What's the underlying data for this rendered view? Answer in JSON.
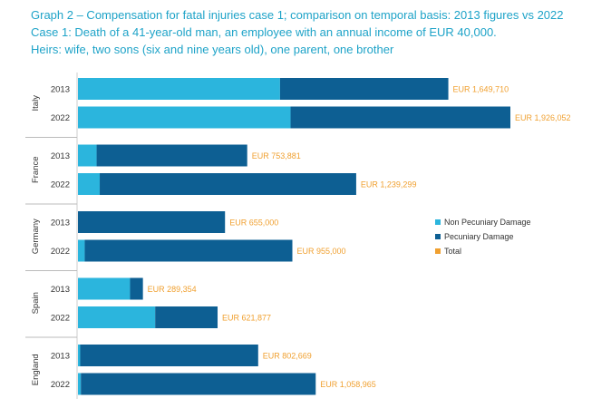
{
  "title_lines": [
    "Graph 2 – Compensation for fatal injuries case 1; comparison on temporal basis: 2013 figures vs 2022",
    "Case 1: Death of a 41-year-old man, an employee with an annual income of EUR 40,000.",
    "Heirs: wife, two sons (six and nine years old), one parent, one brother"
  ],
  "colors": {
    "non_pecuniary": "#2bb5dd",
    "pecuniary": "#0d5f93",
    "total": "#f0a030",
    "title": "#1ea3c8"
  },
  "chart_data": {
    "type": "bar",
    "orientation": "horizontal",
    "stacked": true,
    "currency": "EUR",
    "groups": [
      {
        "country": "Italy",
        "rows": [
          {
            "year": "2013",
            "non_pecuniary": 900000,
            "pecuniary": 749710,
            "total": 1649710,
            "total_label": "EUR 1,649,710"
          },
          {
            "year": "2022",
            "non_pecuniary": 947000,
            "pecuniary": 979052,
            "total": 1926052,
            "total_label": "EUR 1,926,052"
          }
        ]
      },
      {
        "country": "France",
        "rows": [
          {
            "year": "2013",
            "non_pecuniary": 83000,
            "pecuniary": 670881,
            "total": 753881,
            "total_label": "EUR 753,881"
          },
          {
            "year": "2022",
            "non_pecuniary": 97000,
            "pecuniary": 1142299,
            "total": 1239299,
            "total_label": "EUR 1,239,299"
          }
        ]
      },
      {
        "country": "Germany",
        "rows": [
          {
            "year": "2013",
            "non_pecuniary": 0,
            "pecuniary": 655000,
            "total": 655000,
            "total_label": "EUR 655,000"
          },
          {
            "year": "2022",
            "non_pecuniary": 30000,
            "pecuniary": 925000,
            "total": 955000,
            "total_label": "EUR 955,000"
          }
        ]
      },
      {
        "country": "Spain",
        "rows": [
          {
            "year": "2013",
            "non_pecuniary": 232000,
            "pecuniary": 57354,
            "total": 289354,
            "total_label": "EUR 289,354"
          },
          {
            "year": "2022",
            "non_pecuniary": 344000,
            "pecuniary": 277877,
            "total": 621877,
            "total_label": "EUR 621,877"
          }
        ]
      },
      {
        "country": "England",
        "rows": [
          {
            "year": "2013",
            "non_pecuniary": 10000,
            "pecuniary": 792669,
            "total": 802669,
            "total_label": "EUR 802,669"
          },
          {
            "year": "2022",
            "non_pecuniary": 13000,
            "pecuniary": 1045965,
            "total": 1058965,
            "total_label": "EUR 1,058,965"
          }
        ]
      }
    ],
    "legend": {
      "position": "right",
      "entries": [
        "Non Pecuniary Damage",
        "Pecuniary Damage",
        "Total"
      ]
    },
    "grid": false
  }
}
